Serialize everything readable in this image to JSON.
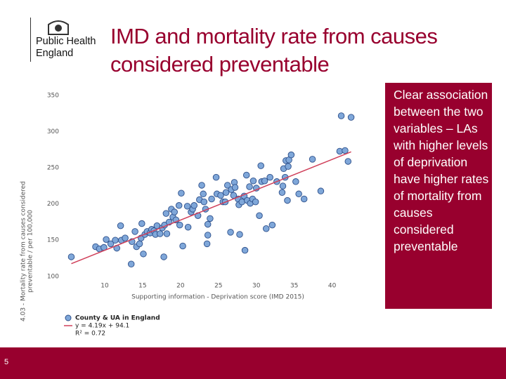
{
  "logo": {
    "lines": [
      "Public Health",
      "England"
    ]
  },
  "title": "IMD and mortality rate from causes considered preventable",
  "side_note": "Clear association between the two variables – LAs with higher levels of deprivation have higher rates of mortality from causes considered preventable",
  "slide_number": "5",
  "chart_data": {
    "type": "scatter",
    "x_label": "Supporting information - Deprivation score (IMD 2015)",
    "y_label": [
      "4.03 - Mortality rate from causes considered",
      "preventable / per 100,000"
    ],
    "xlim": [
      5,
      43
    ],
    "ylim": [
      92,
      356
    ],
    "xticks": [
      10,
      15,
      20,
      25,
      30,
      35,
      40
    ],
    "yticks": [
      100,
      150,
      200,
      250,
      300,
      350
    ],
    "grid": false,
    "series": [
      {
        "name": "County & UA in England",
        "color": "#7fa7d9",
        "x": [
          5.6,
          8.8,
          9.3,
          9.9,
          10.2,
          10.8,
          11.4,
          11.6,
          12.1,
          12.2,
          12.7,
          13.5,
          13.6,
          14.0,
          14.2,
          14.6,
          14.8,
          14.9,
          15.1,
          15.3,
          15.6,
          16.0,
          16.2,
          16.5,
          16.7,
          16.9,
          17.3,
          17.6,
          17.8,
          17.9,
          18.1,
          18.2,
          18.5,
          18.8,
          19.0,
          19.2,
          19.4,
          19.8,
          19.9,
          20.1,
          20.3,
          20.9,
          21.0,
          21.4,
          21.6,
          21.8,
          22.3,
          22.5,
          22.8,
          23.0,
          23.1,
          23.3,
          23.5,
          23.6,
          23.6,
          23.9,
          24.1,
          24.7,
          24.8,
          25.3,
          25.6,
          25.9,
          26.0,
          26.2,
          26.6,
          26.7,
          27.0,
          27.1,
          27.2,
          27.6,
          27.7,
          27.8,
          28.1,
          28.4,
          28.5,
          28.7,
          28.8,
          29.1,
          29.2,
          29.5,
          29.6,
          29.9,
          30.0,
          30.4,
          30.6,
          30.7,
          31.1,
          31.3,
          31.8,
          32.1,
          32.7,
          33.4,
          33.5,
          33.6,
          33.8,
          33.9,
          34.1,
          34.2,
          34.3,
          34.6,
          35.2,
          35.6,
          36.3,
          37.4,
          38.5,
          41.0,
          41.2,
          41.7,
          42.1,
          42.5
        ],
        "values": [
          127,
          141,
          138,
          140,
          151,
          145,
          150,
          139,
          170,
          150,
          153,
          117,
          148,
          162,
          141,
          145,
          153,
          173,
          131,
          158,
          162,
          160,
          165,
          163,
          158,
          170,
          159,
          167,
          127,
          171,
          187,
          159,
          175,
          193,
          182,
          189,
          178,
          198,
          171,
          215,
          142,
          197,
          168,
          189,
          193,
          198,
          184,
          206,
          226,
          214,
          203,
          193,
          145,
          157,
          172,
          180,
          207,
          237,
          214,
          212,
          203,
          203,
          216,
          226,
          161,
          220,
          212,
          230,
          223,
          207,
          199,
          158,
          203,
          211,
          136,
          240,
          205,
          224,
          201,
          207,
          232,
          203,
          222,
          184,
          253,
          231,
          232,
          166,
          237,
          171,
          231,
          216,
          225,
          249,
          237,
          260,
          205,
          252,
          261,
          268,
          231,
          214,
          207,
          262,
          218,
          273,
          322,
          274,
          259,
          320
        ]
      }
    ],
    "trendline": {
      "label": "y = 4.19x + 94.1",
      "slope": 4.19,
      "intercept": 94.1,
      "color": "#d0405a"
    },
    "r2_label": "R² = 0.72"
  }
}
